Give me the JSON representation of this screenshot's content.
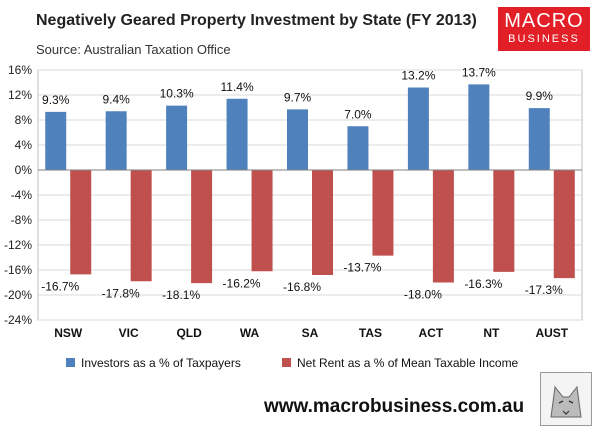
{
  "header": {
    "title": "Negatively Geared Property Investment  by State (FY 2013)",
    "source": "Source: Australian Taxation Office"
  },
  "logo": {
    "line1": "MACRO",
    "line2": "BUSINESS",
    "color": "#e21f26"
  },
  "footer": {
    "website": "www.macrobusiness.com.au"
  },
  "chart_data": {
    "type": "bar",
    "categories": [
      "NSW",
      "VIC",
      "QLD",
      "WA",
      "SA",
      "TAS",
      "ACT",
      "NT",
      "AUST"
    ],
    "series": [
      {
        "name": "Investors as a % of Taxpayers",
        "values": [
          9.3,
          9.4,
          10.3,
          11.4,
          9.7,
          7.0,
          13.2,
          13.7,
          9.9
        ],
        "labels": [
          "9.3%",
          "9.4%",
          "10.3%",
          "11.4%",
          "9.7%",
          "7.0%",
          "13.2%",
          "13.7%",
          "9.9%"
        ],
        "color": "#4f81bd"
      },
      {
        "name": "Net Rent as a % of Mean Taxable Income",
        "values": [
          -16.7,
          -17.8,
          -18.1,
          -16.2,
          -16.8,
          -13.7,
          -18.0,
          -16.3,
          -17.3
        ],
        "labels": [
          "-16.7%",
          "-17.8%",
          "-18.1%",
          "-16.2%",
          "-16.8%",
          "-13.7%",
          "-18.0%",
          "-16.3%",
          "-17.3%"
        ],
        "color": "#c0504d"
      }
    ],
    "yticks": [
      "16%",
      "12%",
      "8%",
      "4%",
      "0%",
      "-4%",
      "-8%",
      "-12%",
      "-16%",
      "-20%",
      "-24%"
    ],
    "ylim": [
      -24,
      16
    ],
    "grid": true,
    "legend_position": "bottom"
  }
}
